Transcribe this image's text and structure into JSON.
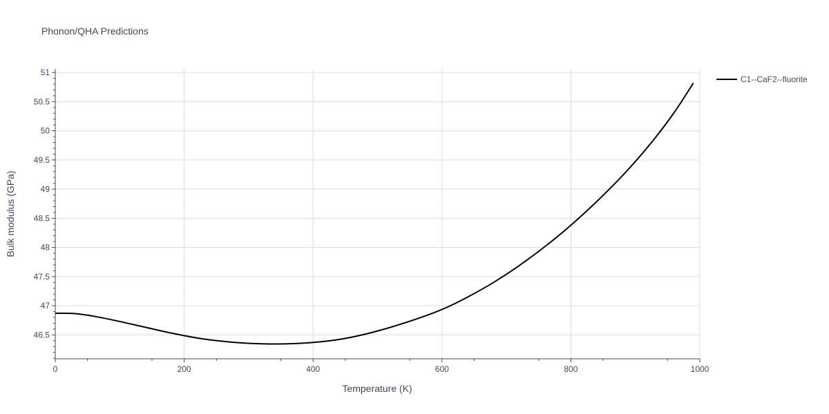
{
  "chart_data": {
    "type": "line",
    "title": "Phonon/QHA Predictions",
    "xlabel": "Temperature (K)",
    "ylabel": "Bulk modulus (GPa)",
    "xlim": [
      0,
      1000
    ],
    "ylim": [
      46.09,
      51.06
    ],
    "x_ticks": [
      0,
      200,
      400,
      600,
      800,
      1000
    ],
    "y_ticks": [
      46.5,
      47,
      47.5,
      48,
      48.5,
      49,
      49.5,
      50,
      50.5,
      51
    ],
    "x_tick_labels": [
      "0",
      "200",
      "400",
      "600",
      "800",
      "1000"
    ],
    "y_tick_labels": [
      "46.5",
      "47",
      "47.5",
      "48",
      "48.5",
      "49",
      "49.5",
      "50",
      "50.5",
      "51"
    ],
    "grid": true,
    "legend_position": "top-right",
    "series": [
      {
        "name": "C1--CaF2--fluorite",
        "color": "#000000",
        "x": [
          0,
          20,
          35,
          60,
          100,
          140,
          185,
          230,
          280,
          330,
          370,
          410,
          445,
          480,
          520,
          565,
          605,
          640,
          680,
          720,
          765,
          805,
          845,
          885,
          925,
          960,
          990
        ],
        "y": [
          46.87,
          46.87,
          46.86,
          46.82,
          46.73,
          46.63,
          46.52,
          46.43,
          46.37,
          46.345,
          46.35,
          46.38,
          46.43,
          46.51,
          46.63,
          46.79,
          46.96,
          47.15,
          47.4,
          47.69,
          48.06,
          48.43,
          48.84,
          49.29,
          49.8,
          50.31,
          50.82
        ]
      }
    ]
  }
}
